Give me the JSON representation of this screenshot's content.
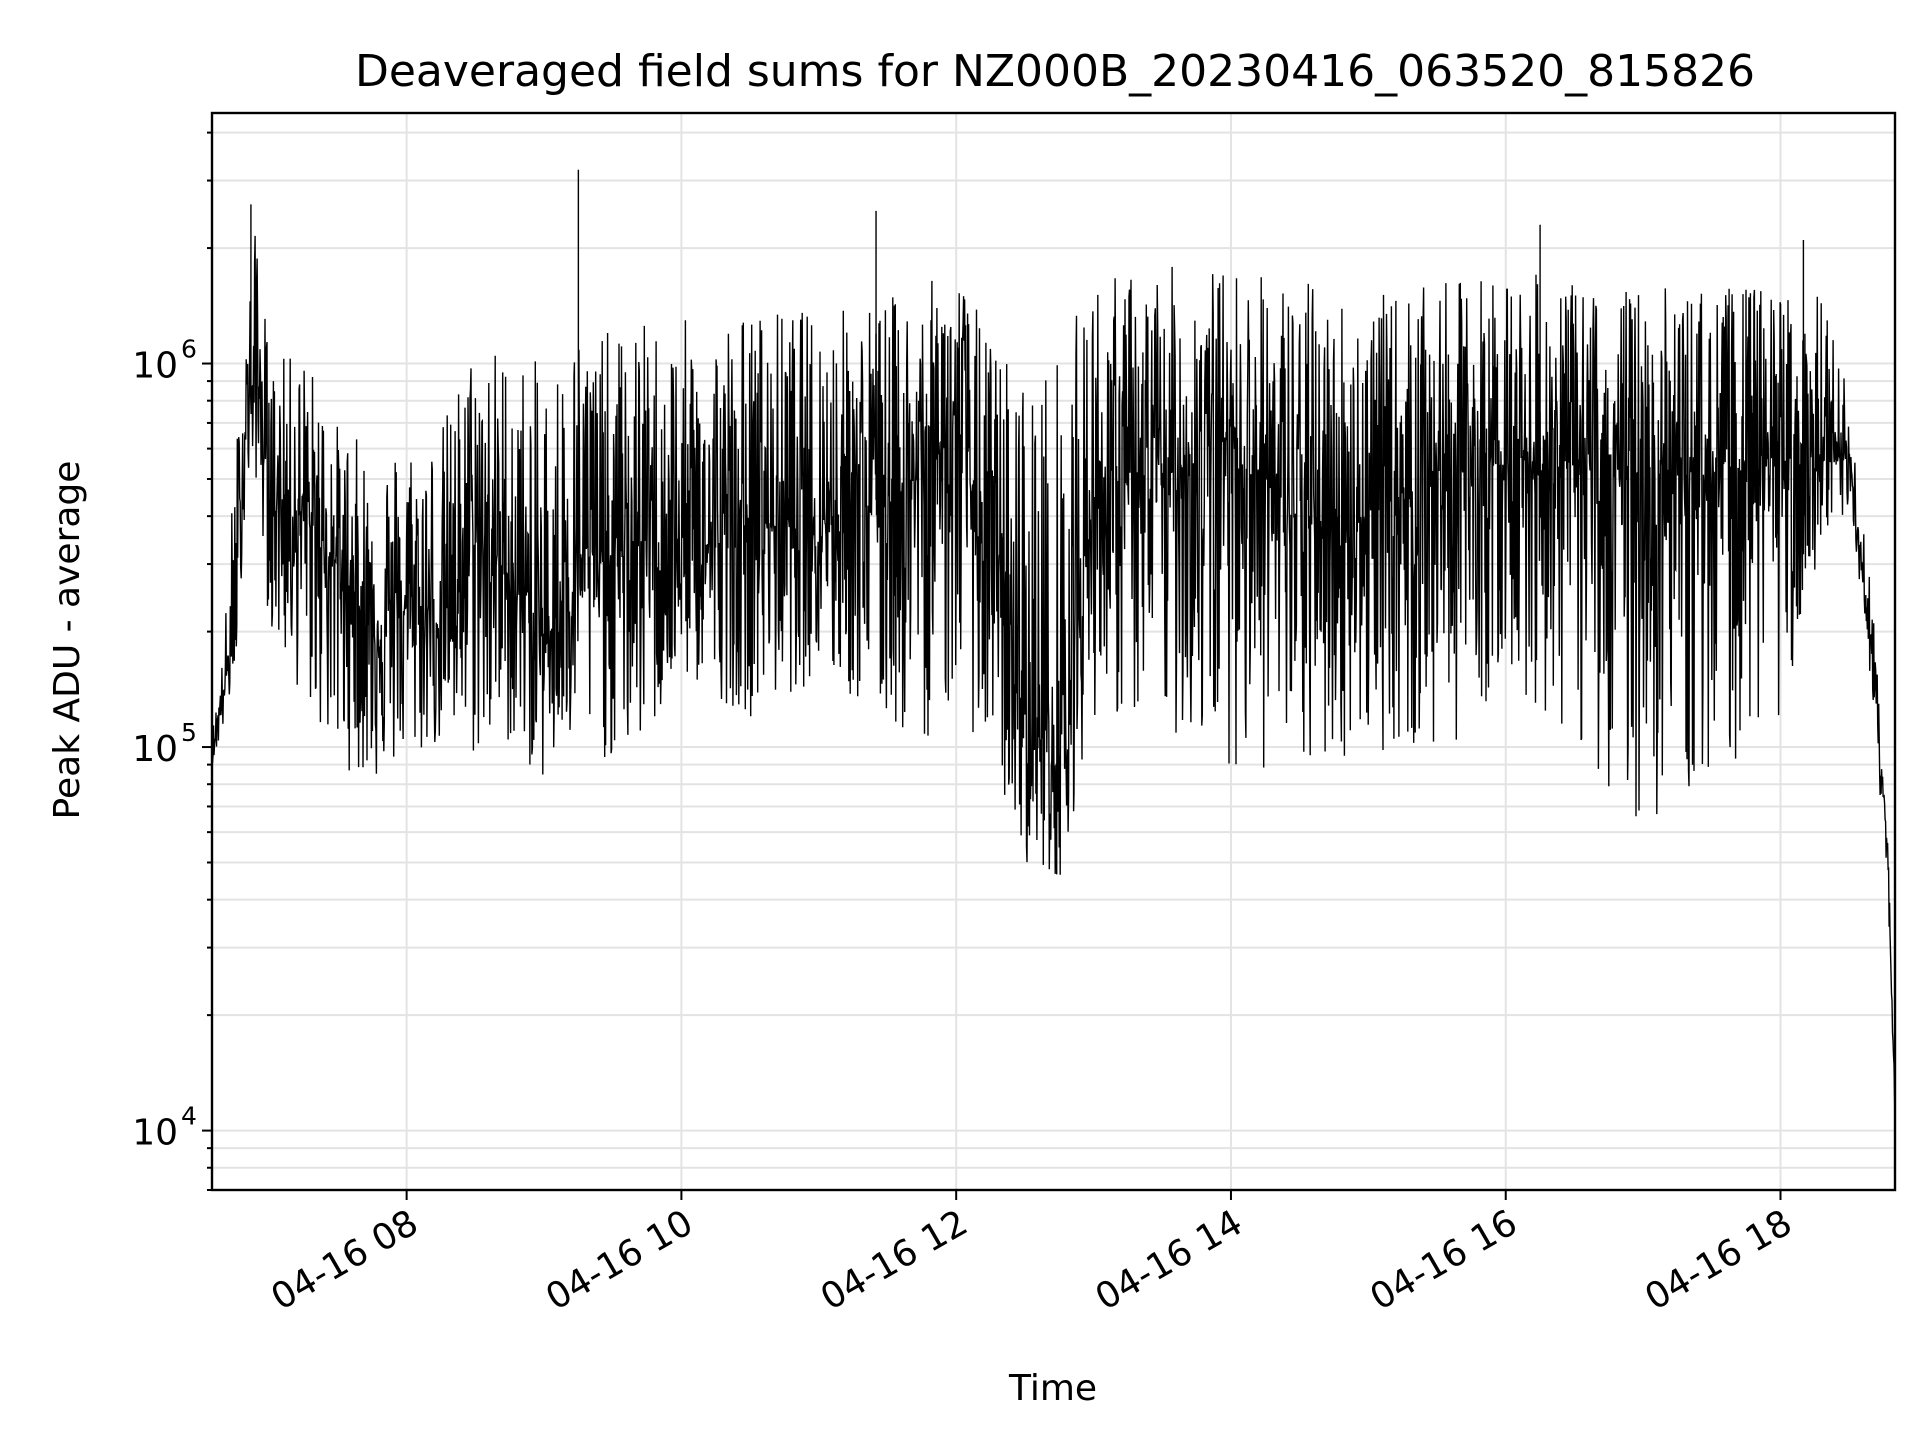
{
  "chart_data": {
    "type": "line",
    "title": "Deaveraged field sums for NZ000B_20230416_063520_815826",
    "xlabel": "Time",
    "ylabel": "Peak ADU - average",
    "yscale": "log",
    "ylim": [
      7000,
      4500000
    ],
    "xlim": [
      "2023-04-16 06:35",
      "2023-04-16 18:50"
    ],
    "grid": true,
    "x_tick_labels": [
      "04-16 08",
      "04-16 10",
      "04-16 12",
      "04-16 14",
      "04-16 16",
      "04-16 18"
    ],
    "y_tick_labels": [
      {
        "base": "10",
        "exp": "4",
        "value": 10000
      },
      {
        "base": "10",
        "exp": "5",
        "value": 100000
      },
      {
        "base": "10",
        "exp": "6",
        "value": 1000000
      }
    ],
    "series": [
      {
        "color": "#000000",
        "x": [
          "2023-04-16 06:35",
          "2023-04-16 06:40",
          "2023-04-16 06:45",
          "2023-04-16 06:50",
          "2023-04-16 06:55",
          "2023-04-16 07:00",
          "2023-04-16 07:15",
          "2023-04-16 07:30",
          "2023-04-16 07:45",
          "2023-04-16 08:00",
          "2023-04-16 08:15",
          "2023-04-16 08:30",
          "2023-04-16 08:45",
          "2023-04-16 09:00",
          "2023-04-16 09:15",
          "2023-04-16 09:30",
          "2023-04-16 09:45",
          "2023-04-16 10:00",
          "2023-04-16 10:30",
          "2023-04-16 11:00",
          "2023-04-16 11:30",
          "2023-04-16 11:45",
          "2023-04-16 12:00",
          "2023-04-16 12:15",
          "2023-04-16 12:30",
          "2023-04-16 12:45",
          "2023-04-16 13:00",
          "2023-04-16 13:30",
          "2023-04-16 14:00",
          "2023-04-16 14:30",
          "2023-04-16 15:00",
          "2023-04-16 15:30",
          "2023-04-16 16:00",
          "2023-04-16 16:30",
          "2023-04-16 17:00",
          "2023-04-16 17:30",
          "2023-04-16 18:00",
          "2023-04-16 18:20",
          "2023-04-16 18:30",
          "2023-04-16 18:40",
          "2023-04-16 18:47",
          "2023-04-16 18:50"
        ],
        "y": [
          95000,
          140000,
          200000,
          800000,
          900000,
          450000,
          400000,
          300000,
          200000,
          230000,
          210000,
          350000,
          280000,
          180000,
          320000,
          300000,
          350000,
          300000,
          380000,
          400000,
          450000,
          500000,
          700000,
          280000,
          120000,
          90000,
          450000,
          500000,
          650000,
          380000,
          400000,
          520000,
          560000,
          550000,
          500000,
          520000,
          560000,
          550000,
          560000,
          180000,
          50000,
          11000
        ],
        "y_high": [
          110000,
          180000,
          600000,
          1300000,
          2600000,
          1000000,
          1100000,
          700000,
          600000,
          650000,
          700000,
          1200000,
          1100000,
          1000000,
          1300000,
          1200000,
          1300000,
          1300000,
          1400000,
          1400000,
          1500000,
          1600000,
          1800000,
          1200000,
          1000000,
          1100000,
          1700000,
          1800000,
          1800000,
          1700000,
          1500000,
          1600000,
          1800000,
          1600000,
          1600000,
          1600000,
          1600000,
          1500000,
          800000,
          250000,
          60000,
          13000
        ],
        "y_low": [
          90000,
          110000,
          150000,
          450000,
          500000,
          200000,
          130000,
          90000,
          80000,
          90000,
          100000,
          90000,
          100000,
          80000,
          100000,
          90000,
          100000,
          150000,
          120000,
          150000,
          110000,
          100000,
          130000,
          90000,
          50000,
          45000,
          120000,
          110000,
          90000,
          80000,
          100000,
          90000,
          150000,
          100000,
          60000,
          80000,
          120000,
          300000,
          400000,
          140000,
          40000,
          9500
        ]
      }
    ],
    "annotated_peaks": [
      {
        "x": "2023-04-16 06:52",
        "y": 2600000
      },
      {
        "x": "2023-04-16 09:15",
        "y": 3200000
      },
      {
        "x": "2023-04-16 11:25",
        "y": 2500000
      },
      {
        "x": "2023-04-16 16:15",
        "y": 2300000
      },
      {
        "x": "2023-04-16 18:10",
        "y": 2100000
      }
    ]
  }
}
